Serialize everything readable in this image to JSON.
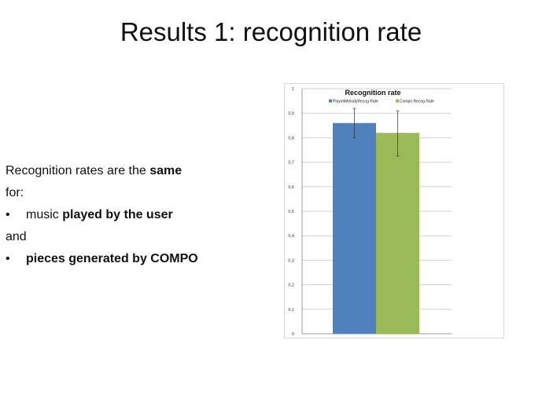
{
  "slide": {
    "title": "Results 1: recognition rate",
    "body": {
      "line1_prefix": "Recognition rates are the ",
      "line1_bold": "same",
      "line2": "for:",
      "bullet_symbol": "•",
      "bullet1_prefix": "music ",
      "bullet1_bold": "played by the user",
      "connector": "and",
      "bullet2_bold": "pieces generated by COMPO"
    }
  },
  "chart_data": {
    "type": "bar",
    "title": "Recognition rate",
    "xlabel": "",
    "ylabel": "",
    "ylim": [
      0,
      1
    ],
    "y_ticks": [
      "0",
      "0,1",
      "0,2",
      "0,3",
      "0,4",
      "0,5",
      "0,6",
      "0,7",
      "0,8",
      "0,9",
      "1"
    ],
    "grid": true,
    "legend_position": "top",
    "series": [
      {
        "name": "PlayedMelodyRecog Rate",
        "value": 0.86,
        "error_low": 0.8,
        "error_high": 0.92,
        "color": "#4f81bd"
      },
      {
        "name": "Compo Recog Rate",
        "value": 0.82,
        "error_low": 0.725,
        "error_high": 0.91,
        "color": "#9bbb59"
      }
    ]
  }
}
